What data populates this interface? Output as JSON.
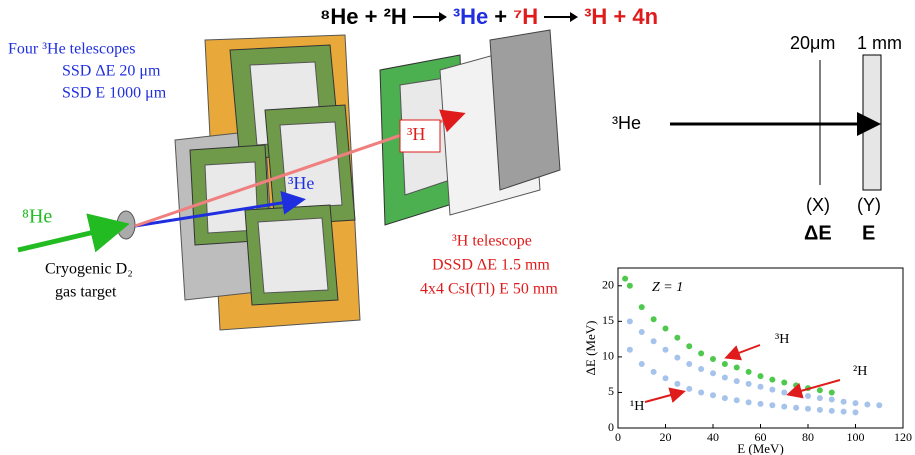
{
  "reaction": {
    "parts": [
      {
        "text": "⁸He + ²H",
        "color": "#000000"
      },
      {
        "text": "³He",
        "color": "#1f2fe0"
      },
      {
        "text": "+",
        "color": "#000000"
      },
      {
        "text": "⁷H",
        "color": "#e01b1b"
      },
      {
        "text": "³H + 4n",
        "color": "#e01b1b"
      }
    ]
  },
  "setup": {
    "telescopes": [
      "Four ³He telescopes",
      "SSD ΔE 20 μm",
      "SSD E 1000 μm"
    ],
    "beam": "⁸He",
    "target": [
      "Cryogenic D₂",
      "gas target"
    ],
    "he3": "³He",
    "h3": "³H",
    "h3_telescope": [
      "³H telescope",
      "DSSD ΔE 1.5 mm",
      "4x4 CsI(Tl) E 50 mm"
    ]
  },
  "detector_sketch": {
    "thin": "20μm",
    "thick": "1 mm",
    "particle": "³He",
    "x": "(X)",
    "y": "(Y)",
    "de": "ΔE",
    "e": "E"
  },
  "chart_data": {
    "type": "scatter",
    "xlabel": "E (MeV)",
    "ylabel": "ΔE (MeV)",
    "annotation": "Z = 1",
    "xlim": [
      0,
      120
    ],
    "ylim": [
      0,
      22.5
    ],
    "xticks": [
      0,
      20,
      40,
      60,
      80,
      100,
      120
    ],
    "yticks": [
      0,
      5,
      10,
      15,
      20
    ],
    "series": [
      {
        "name": "³H",
        "color": "#22bb22",
        "x": [
          3,
          5,
          10,
          15,
          20,
          25,
          30,
          35,
          40,
          45,
          50,
          55,
          60,
          65,
          70,
          75,
          80,
          85,
          90
        ],
        "values": [
          21,
          20,
          17,
          15.3,
          14,
          12.7,
          11.5,
          10.5,
          9.7,
          9,
          8.5,
          7.9,
          7.3,
          6.8,
          6.4,
          6,
          5.6,
          5.3,
          5
        ]
      },
      {
        "name": "²H",
        "color": "#8fb4e6",
        "x": [
          5,
          10,
          15,
          20,
          25,
          30,
          35,
          40,
          45,
          50,
          55,
          60,
          65,
          70,
          75,
          80,
          85,
          90,
          95,
          100,
          105,
          110
        ],
        "values": [
          15,
          13.5,
          12.2,
          11,
          9.9,
          9,
          8.3,
          7.7,
          7.1,
          6.6,
          6.2,
          5.8,
          5.4,
          5,
          4.8,
          4.5,
          4.2,
          4,
          3.7,
          3.5,
          3.3,
          3.2
        ]
      },
      {
        "name": "¹H",
        "color": "#8fb4e6",
        "x": [
          5,
          10,
          15,
          20,
          25,
          30,
          35,
          40,
          45,
          50,
          55,
          60,
          65,
          70,
          75,
          80,
          85,
          90,
          95,
          100
        ],
        "values": [
          11,
          9,
          7.9,
          7,
          6.2,
          5.5,
          5,
          4.6,
          4.2,
          3.9,
          3.6,
          3.4,
          3.2,
          3,
          2.85,
          2.7,
          2.55,
          2.4,
          2.3,
          2.2
        ]
      }
    ]
  }
}
